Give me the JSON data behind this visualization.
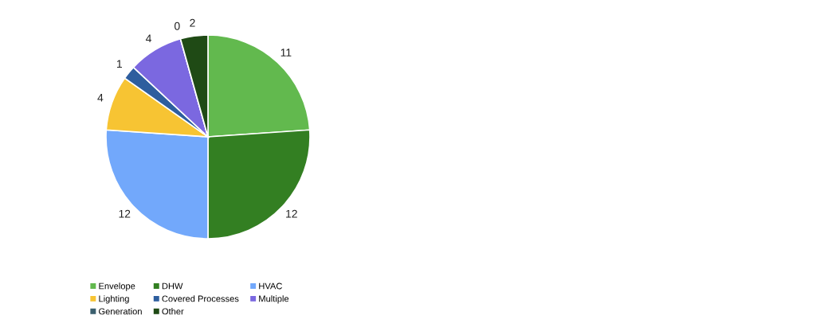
{
  "chart_data": {
    "type": "pie",
    "categories": [
      "Envelope",
      "DHW",
      "HVAC",
      "Lighting",
      "Covered Processes",
      "Multiple",
      "Generation",
      "Other"
    ],
    "values": [
      11,
      12,
      12,
      4,
      1,
      4,
      0,
      2
    ],
    "colors": [
      "#62b94e",
      "#337f22",
      "#72a8fb",
      "#f7c433",
      "#2e5e9e",
      "#7b68e0",
      "#3b5f6e",
      "#1f4a15"
    ],
    "value_labels": [
      "11",
      "12",
      "12",
      "4",
      "1",
      "4",
      "0",
      "2"
    ],
    "legend": "bottom"
  }
}
